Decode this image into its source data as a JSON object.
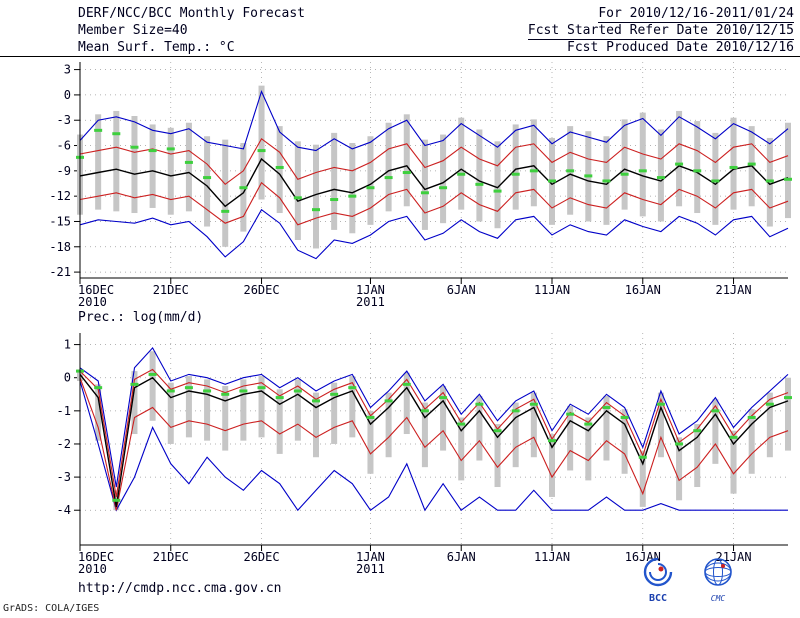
{
  "header": {
    "title": "DERF/NCC/BCC Monthly Forecast",
    "date_range": "For 2010/12/16-2011/01/24",
    "member_size": "Member Size=40",
    "fcst_started": "Fcst Started Refer Date 2010/12/15",
    "fcst_produced": "Fcst Produced Date 2010/12/16"
  },
  "footer": {
    "url": "http://cmdp.ncc.cma.gov.cn",
    "credit": "GrADS: COLA/IGES",
    "bcc_caption": "BCC",
    "cmc_caption": "CMC"
  },
  "colors": {
    "max_min_line": "#0000c8",
    "spread_line": "#cc2020",
    "mean_line": "#000000",
    "median_marker": "#3ecf3e",
    "member_bar": "#c6c6c6",
    "grid": "#9a9a9a",
    "axis": "#000000",
    "text": "#00001e"
  },
  "chart_data": [
    {
      "type": "line",
      "name": "surface-temperature-chart",
      "title": "Mean Surf. Temp.: °C",
      "ylabel": "°C",
      "ylim": [
        -21,
        3
      ],
      "yticks": [
        3,
        0,
        -3,
        -6,
        -9,
        -12,
        -15,
        -18,
        -21
      ],
      "n_points": 40,
      "xticks": [
        {
          "day": 0,
          "label": "16DEC",
          "sub": "2010"
        },
        {
          "day": 5,
          "label": "21DEC"
        },
        {
          "day": 10,
          "label": "26DEC"
        },
        {
          "day": 16,
          "label": "1JAN",
          "sub": "2011"
        },
        {
          "day": 21,
          "label": "6JAN"
        },
        {
          "day": 26,
          "label": "11JAN"
        },
        {
          "day": 31,
          "label": "16JAN"
        },
        {
          "day": 36,
          "label": "21JAN"
        }
      ],
      "bars": {
        "name": "ensemble-member-range",
        "high": [
          -4.7,
          -2.3,
          -1.9,
          -2.5,
          -3.5,
          -3.9,
          -3.3,
          -4.9,
          -5.3,
          -5.7,
          1.1,
          -3.7,
          -5.5,
          -5.9,
          -4.5,
          -5.7,
          -4.9,
          -3.3,
          -2.3,
          -5.3,
          -4.7,
          -2.7,
          -4.1,
          -5.5,
          -3.5,
          -2.9,
          -5.1,
          -3.7,
          -4.3,
          -4.9,
          -2.9,
          -2.1,
          -4.1,
          -1.9,
          -3.1,
          -4.5,
          -2.7,
          -3.7,
          -5.1,
          -3.3
        ],
        "low": [
          -14.2,
          -13.6,
          -13.8,
          -14.0,
          -13.4,
          -14.2,
          -13.8,
          -15.6,
          -18.0,
          -16.2,
          -12.4,
          -14.0,
          -17.2,
          -18.2,
          -16.0,
          -16.4,
          -15.4,
          -13.8,
          -13.2,
          -16.0,
          -15.2,
          -13.6,
          -15.0,
          -15.8,
          -13.6,
          -13.2,
          -15.4,
          -14.2,
          -15.0,
          -15.4,
          -13.6,
          -14.4,
          -15.0,
          -13.2,
          -14.0,
          -15.4,
          -13.6,
          -13.2,
          -15.6,
          -14.6
        ]
      },
      "series": [
        {
          "name": "ensemble-max",
          "color_key": "max_min_line",
          "values": [
            -5.4,
            -3.0,
            -2.6,
            -3.2,
            -4.2,
            -4.6,
            -4.0,
            -5.6,
            -6.0,
            -6.4,
            0.4,
            -4.4,
            -6.2,
            -6.6,
            -5.2,
            -6.4,
            -5.6,
            -4.0,
            -3.0,
            -6.0,
            -5.4,
            -3.4,
            -4.8,
            -6.2,
            -4.2,
            -3.6,
            -5.8,
            -4.4,
            -5.0,
            -5.6,
            -3.6,
            -2.8,
            -4.8,
            -2.6,
            -3.8,
            -5.2,
            -3.4,
            -4.4,
            -5.8,
            -4.0
          ]
        },
        {
          "name": "ensemble-min",
          "color_key": "max_min_line",
          "values": [
            -15.4,
            -14.8,
            -15.0,
            -15.2,
            -14.6,
            -15.4,
            -15.0,
            -16.8,
            -19.2,
            -17.4,
            -13.6,
            -15.2,
            -18.4,
            -19.4,
            -17.2,
            -17.6,
            -16.6,
            -15.0,
            -14.4,
            -17.2,
            -16.4,
            -14.8,
            -16.2,
            -17.0,
            -14.8,
            -14.4,
            -16.6,
            -15.4,
            -16.2,
            -16.6,
            -14.8,
            -15.6,
            -16.2,
            -14.4,
            -15.2,
            -16.6,
            -14.8,
            -14.4,
            -16.8,
            -15.8
          ]
        },
        {
          "name": "spread-upper",
          "color_key": "spread_line",
          "values": [
            -7.0,
            -6.6,
            -6.2,
            -6.8,
            -6.4,
            -7.0,
            -6.6,
            -8.2,
            -10.6,
            -9.0,
            -5.2,
            -6.8,
            -10.0,
            -9.2,
            -8.6,
            -9.0,
            -8.0,
            -6.4,
            -5.8,
            -8.6,
            -7.8,
            -6.2,
            -7.6,
            -8.4,
            -6.2,
            -5.8,
            -8.0,
            -6.8,
            -7.6,
            -8.0,
            -6.2,
            -7.0,
            -7.6,
            -5.8,
            -6.6,
            -8.0,
            -6.2,
            -5.8,
            -8.0,
            -7.2
          ]
        },
        {
          "name": "spread-lower",
          "color_key": "spread_line",
          "values": [
            -12.4,
            -12.0,
            -11.6,
            -12.2,
            -11.8,
            -12.4,
            -12.0,
            -13.6,
            -15.2,
            -14.4,
            -10.4,
            -12.2,
            -15.4,
            -14.6,
            -14.0,
            -14.4,
            -13.4,
            -11.8,
            -11.2,
            -14.0,
            -13.2,
            -11.6,
            -13.0,
            -13.8,
            -11.6,
            -11.2,
            -13.4,
            -12.2,
            -13.0,
            -13.4,
            -11.6,
            -12.4,
            -13.0,
            -11.2,
            -12.0,
            -13.4,
            -11.6,
            -11.2,
            -13.4,
            -12.6
          ]
        },
        {
          "name": "ensemble-mean",
          "color_key": "mean_line",
          "width": 1.4,
          "values": [
            -9.6,
            -9.2,
            -8.8,
            -9.4,
            -9.0,
            -9.6,
            -9.2,
            -10.8,
            -13.2,
            -11.6,
            -7.6,
            -9.4,
            -12.6,
            -11.8,
            -11.2,
            -11.6,
            -10.6,
            -9.0,
            -8.4,
            -11.2,
            -10.4,
            -8.8,
            -10.2,
            -11.0,
            -8.8,
            -8.4,
            -10.6,
            -9.4,
            -10.2,
            -10.6,
            -8.8,
            -9.6,
            -10.2,
            -8.4,
            -9.2,
            -10.6,
            -8.8,
            -8.4,
            -10.6,
            -9.8
          ]
        }
      ],
      "markers": {
        "name": "ensemble-median",
        "color_key": "median_marker",
        "values": [
          -7.4,
          -4.2,
          -4.6,
          -6.2,
          -6.6,
          -6.4,
          -8.0,
          -9.8,
          -13.8,
          -11.0,
          -6.6,
          -8.6,
          -12.2,
          -13.6,
          -12.4,
          -12.0,
          -11.0,
          -9.8,
          -9.2,
          -11.6,
          -11.0,
          -9.4,
          -10.6,
          -11.4,
          -9.4,
          -9.0,
          -10.2,
          -9.0,
          -9.6,
          -10.2,
          -9.4,
          -9.0,
          -9.8,
          -8.2,
          -9.0,
          -10.2,
          -8.6,
          -8.2,
          -10.2,
          -10.0
        ]
      }
    },
    {
      "type": "line",
      "name": "precipitation-chart",
      "title": "Prec.: log(mm/d)",
      "ylabel": "log(mm/d)",
      "ylim": [
        -4,
        1
      ],
      "yticks": [
        1,
        0,
        -1,
        -2,
        -3,
        -4
      ],
      "n_points": 40,
      "xticks": [
        {
          "day": 0,
          "label": "16DEC",
          "sub": "2010"
        },
        {
          "day": 5,
          "label": "21DEC"
        },
        {
          "day": 10,
          "label": "26DEC"
        },
        {
          "day": 16,
          "label": "1JAN",
          "sub": "2011"
        },
        {
          "day": 21,
          "label": "6JAN"
        },
        {
          "day": 26,
          "label": "11JAN"
        },
        {
          "day": 31,
          "label": "16JAN"
        },
        {
          "day": 36,
          "label": "21JAN"
        }
      ],
      "bars": {
        "name": "ensemble-member-range",
        "high": [
          0.25,
          -0.2,
          -3.4,
          0.2,
          0.8,
          -0.15,
          0.05,
          -0.05,
          -0.25,
          -0.05,
          0.05,
          -0.35,
          -0.05,
          -0.45,
          -0.15,
          0.05,
          -1.0,
          -0.45,
          0.15,
          -0.75,
          -0.25,
          -1.2,
          -0.55,
          -1.4,
          -0.75,
          -0.45,
          -1.7,
          -0.85,
          -1.2,
          -0.55,
          -0.95,
          -2.2,
          -0.45,
          -1.8,
          -1.4,
          -0.65,
          -1.6,
          -0.95,
          -0.45,
          0.0
        ],
        "low": [
          -0.1,
          -1.9,
          -4.0,
          -1.7,
          -1.3,
          -2.0,
          -1.8,
          -1.9,
          -2.2,
          -1.9,
          -1.8,
          -2.3,
          -1.9,
          -2.4,
          -2.0,
          -1.8,
          -2.9,
          -2.4,
          -1.7,
          -2.7,
          -2.2,
          -3.1,
          -2.5,
          -3.3,
          -2.7,
          -2.4,
          -3.6,
          -2.8,
          -3.1,
          -2.5,
          -2.9,
          -3.9,
          -2.4,
          -3.7,
          -3.3,
          -2.6,
          -3.5,
          -2.9,
          -2.4,
          -2.2
        ]
      },
      "series": [
        {
          "name": "ensemble-max",
          "color_key": "max_min_line",
          "values": [
            0.3,
            -0.1,
            -3.3,
            0.3,
            0.9,
            -0.1,
            0.1,
            0.0,
            -0.2,
            0.0,
            0.1,
            -0.3,
            0.0,
            -0.4,
            -0.1,
            0.1,
            -0.9,
            -0.4,
            0.2,
            -0.7,
            -0.2,
            -1.1,
            -0.5,
            -1.3,
            -0.7,
            -0.4,
            -1.6,
            -0.8,
            -1.1,
            -0.5,
            -0.9,
            -2.1,
            -0.4,
            -1.7,
            -1.3,
            -0.6,
            -1.5,
            -0.9,
            -0.4,
            0.1
          ]
        },
        {
          "name": "ensemble-min",
          "color_key": "max_min_line",
          "values": [
            -0.1,
            -2.0,
            -4.0,
            -3.0,
            -1.5,
            -2.6,
            -3.2,
            -2.4,
            -3.0,
            -3.4,
            -2.8,
            -3.2,
            -4.0,
            -3.4,
            -2.8,
            -3.2,
            -4.0,
            -3.6,
            -2.6,
            -4.0,
            -3.2,
            -4.0,
            -3.6,
            -4.0,
            -4.0,
            -3.4,
            -4.0,
            -4.0,
            -4.0,
            -3.6,
            -4.0,
            -4.0,
            -3.8,
            -4.0,
            -4.0,
            -4.0,
            -4.0,
            -4.0,
            -4.0,
            -4.0
          ]
        },
        {
          "name": "spread-upper",
          "color_key": "spread_line",
          "values": [
            0.2,
            -0.35,
            -3.6,
            -0.05,
            0.25,
            -0.35,
            -0.15,
            -0.25,
            -0.45,
            -0.25,
            -0.15,
            -0.55,
            -0.25,
            -0.65,
            -0.35,
            -0.15,
            -1.15,
            -0.65,
            -0.05,
            -0.95,
            -0.45,
            -1.35,
            -0.75,
            -1.55,
            -0.95,
            -0.65,
            -1.85,
            -1.05,
            -1.35,
            -0.75,
            -1.15,
            -2.35,
            -0.65,
            -1.95,
            -1.55,
            -0.85,
            -1.75,
            -1.15,
            -0.65,
            -0.45
          ]
        },
        {
          "name": "spread-lower",
          "color_key": "spread_line",
          "values": [
            0.0,
            -1.5,
            -4.0,
            -1.2,
            -0.9,
            -1.5,
            -1.3,
            -1.4,
            -1.6,
            -1.4,
            -1.3,
            -1.7,
            -1.4,
            -1.8,
            -1.5,
            -1.3,
            -2.3,
            -1.8,
            -1.2,
            -2.1,
            -1.6,
            -2.5,
            -1.9,
            -2.7,
            -2.1,
            -1.8,
            -3.0,
            -2.2,
            -2.5,
            -1.9,
            -2.3,
            -3.5,
            -1.8,
            -3.1,
            -2.7,
            -2.0,
            -2.9,
            -2.3,
            -1.8,
            -1.6
          ]
        },
        {
          "name": "ensemble-mean",
          "color_key": "mean_line",
          "width": 1.4,
          "values": [
            0.1,
            -0.6,
            -3.9,
            -0.3,
            0.0,
            -0.6,
            -0.4,
            -0.5,
            -0.7,
            -0.5,
            -0.4,
            -0.8,
            -0.5,
            -0.9,
            -0.6,
            -0.4,
            -1.4,
            -0.9,
            -0.3,
            -1.2,
            -0.7,
            -1.6,
            -1.0,
            -1.8,
            -1.2,
            -0.9,
            -2.1,
            -1.3,
            -1.6,
            -1.0,
            -1.4,
            -2.6,
            -0.9,
            -2.2,
            -1.8,
            -1.1,
            -2.0,
            -1.4,
            -0.9,
            -0.7
          ]
        }
      ],
      "markers": {
        "name": "ensemble-median",
        "color_key": "median_marker",
        "values": [
          0.2,
          -0.3,
          -3.7,
          -0.2,
          0.1,
          -0.4,
          -0.3,
          -0.4,
          -0.5,
          -0.4,
          -0.3,
          -0.6,
          -0.4,
          -0.7,
          -0.5,
          -0.3,
          -1.2,
          -0.7,
          -0.2,
          -1.0,
          -0.6,
          -1.4,
          -0.8,
          -1.6,
          -1.0,
          -0.8,
          -1.9,
          -1.1,
          -1.4,
          -0.9,
          -1.2,
          -2.4,
          -0.8,
          -2.0,
          -1.6,
          -1.0,
          -1.8,
          -1.2,
          -0.8,
          -0.6
        ]
      }
    }
  ]
}
